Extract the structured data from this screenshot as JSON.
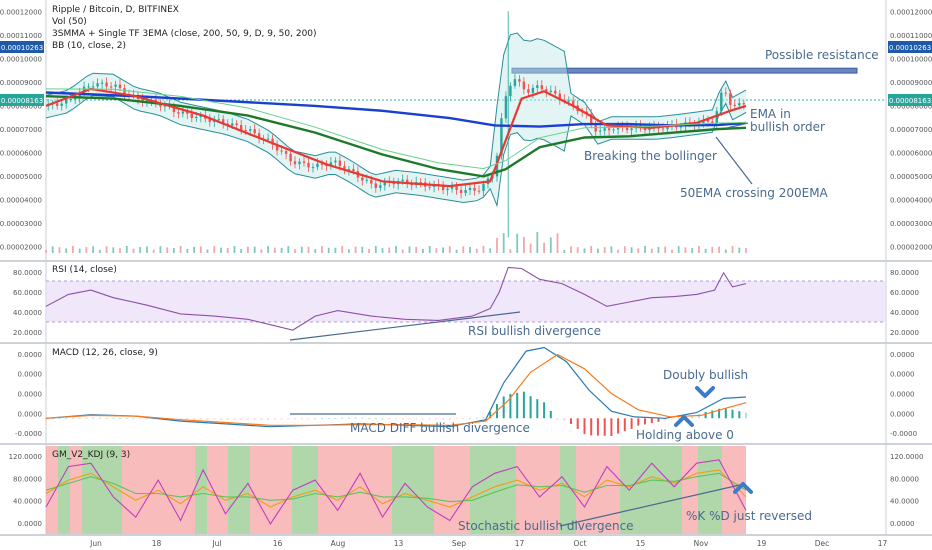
{
  "chart_data": [
    {
      "type": "candlestick",
      "panel": "price",
      "title": "Ripple / Bitcoin, D, BITFINEX",
      "indicators": [
        "Vol (50)",
        "3SMMA + Single TF 3EMA (close, 200, 50, 9, D, 9, 50, 200)",
        "BB (10, close, 2)"
      ],
      "y_ticks": [
        "0.00012000",
        "0.00011000",
        "0.00010000",
        "0.00009000",
        "0.00008000",
        "0.00007000",
        "0.00006000",
        "0.00005000",
        "0.00004000",
        "0.00003000",
        "0.00002000"
      ],
      "ylim": [
        1.85e-05,
        0.0001205
      ],
      "last_price_labels": [
        "0.00010263",
        "0.00008163"
      ],
      "x_labels": [
        "Jun",
        "18",
        "Jul",
        "16",
        "Aug",
        "13",
        "Sep",
        "17",
        "Oct",
        "15",
        "Nov",
        "19",
        "Dec",
        "17"
      ],
      "close_points": [
        [
          0,
          7.88e-05
        ],
        [
          10,
          8.1e-05
        ],
        [
          20,
          8.8e-05
        ],
        [
          30,
          8.75e-05
        ],
        [
          40,
          8.2e-05
        ],
        [
          50,
          8e-05
        ],
        [
          60,
          7.6e-05
        ],
        [
          70,
          7.4e-05
        ],
        [
          80,
          7.2e-05
        ],
        [
          90,
          6.9e-05
        ],
        [
          100,
          6.4e-05
        ],
        [
          110,
          5.6e-05
        ],
        [
          120,
          5.4e-05
        ],
        [
          128,
          5.6e-05
        ],
        [
          136,
          5.2e-05
        ],
        [
          146,
          4.6e-05
        ],
        [
          156,
          4.8e-05
        ],
        [
          166,
          4.7e-05
        ],
        [
          176,
          4.55e-05
        ],
        [
          186,
          4.4e-05
        ],
        [
          194,
          4.5e-05
        ],
        [
          200,
          5.2e-05
        ],
        [
          204,
          8e-05
        ],
        [
          208,
          9.1e-05
        ],
        [
          214,
          8.5e-05
        ],
        [
          220,
          8.7e-05
        ],
        [
          230,
          8.2e-05
        ],
        [
          240,
          7.6e-05
        ],
        [
          246,
          6.8e-05
        ],
        [
          252,
          7e-05
        ],
        [
          262,
          7e-05
        ],
        [
          272,
          7e-05
        ],
        [
          282,
          7.1e-05
        ],
        [
          290,
          7.2e-05
        ],
        [
          298,
          7.3e-05
        ],
        [
          302,
          8.7e-05
        ],
        [
          306,
          7.8e-05
        ],
        [
          312,
          8.1e-05
        ]
      ],
      "series": [
        {
          "name": "EMA 200",
          "color": "#1b3fcf",
          "points": [
            [
              0,
              8.45e-05
            ],
            [
              40,
              8.3e-05
            ],
            [
              80,
              8.1e-05
            ],
            [
              120,
              7.9e-05
            ],
            [
              150,
              7.7e-05
            ],
            [
              180,
              7.4e-05
            ],
            [
              200,
              7.1e-05
            ],
            [
              220,
              7.05e-05
            ],
            [
              240,
              7.15e-05
            ],
            [
              260,
              7.15e-05
            ],
            [
              280,
              7.1e-05
            ],
            [
              300,
              7.12e-05
            ],
            [
              312,
              7.2e-05
            ]
          ]
        },
        {
          "name": "EMA 50",
          "color": "#1d7a2a",
          "points": [
            [
              0,
              8.3e-05
            ],
            [
              30,
              8.2e-05
            ],
            [
              60,
              7.9e-05
            ],
            [
              90,
              7.5e-05
            ],
            [
              120,
              6.8e-05
            ],
            [
              150,
              5.9e-05
            ],
            [
              175,
              5.3e-05
            ],
            [
              195,
              5e-05
            ],
            [
              205,
              5.3e-05
            ],
            [
              220,
              6.2e-05
            ],
            [
              240,
              6.6e-05
            ],
            [
              260,
              6.65e-05
            ],
            [
              280,
              6.8e-05
            ],
            [
              300,
              6.95e-05
            ],
            [
              312,
              7e-05
            ]
          ]
        },
        {
          "name": "EMA 9",
          "color": "#e53935",
          "points": [
            [
              0,
              7.9e-05
            ],
            [
              20,
              8.6e-05
            ],
            [
              40,
              8.3e-05
            ],
            [
              70,
              7.5e-05
            ],
            [
              100,
              6.4e-05
            ],
            [
              125,
              5.5e-05
            ],
            [
              150,
              4.8e-05
            ],
            [
              180,
              4.6e-05
            ],
            [
              198,
              4.8e-05
            ],
            [
              205,
              6.5e-05
            ],
            [
              212,
              8.2e-05
            ],
            [
              222,
              8.5e-05
            ],
            [
              235,
              7.9e-05
            ],
            [
              250,
              7.1e-05
            ],
            [
              270,
              7e-05
            ],
            [
              290,
              7.2e-05
            ],
            [
              305,
              7.7e-05
            ],
            [
              312,
              7.9e-05
            ]
          ]
        }
      ],
      "resistance_zone": [
        9.25e-05,
        9.45e-05
      ],
      "annotations": [
        "Possible resistance",
        "EMA in",
        "bullish order",
        "Breaking the bollinger",
        "50EMA crossing 200EMA"
      ]
    },
    {
      "type": "line",
      "panel": "rsi",
      "title": "RSI (14, close)",
      "y_ticks": [
        "80.0000",
        "60.0000",
        "40.0000",
        "20.0000"
      ],
      "ylim": [
        14,
        88
      ],
      "bands": [
        30,
        70
      ],
      "points": [
        [
          0,
          47
        ],
        [
          10,
          58
        ],
        [
          20,
          62
        ],
        [
          30,
          55
        ],
        [
          45,
          48
        ],
        [
          60,
          40
        ],
        [
          75,
          38
        ],
        [
          90,
          35
        ],
        [
          100,
          30
        ],
        [
          110,
          25
        ],
        [
          120,
          38
        ],
        [
          130,
          43
        ],
        [
          145,
          38
        ],
        [
          160,
          35
        ],
        [
          175,
          34
        ],
        [
          190,
          38
        ],
        [
          198,
          45
        ],
        [
          202,
          60
        ],
        [
          206,
          83
        ],
        [
          212,
          82
        ],
        [
          220,
          72
        ],
        [
          230,
          68
        ],
        [
          240,
          58
        ],
        [
          250,
          47
        ],
        [
          260,
          51
        ],
        [
          270,
          55
        ],
        [
          280,
          56
        ],
        [
          290,
          58
        ],
        [
          298,
          62
        ],
        [
          302,
          78
        ],
        [
          306,
          65
        ],
        [
          312,
          68
        ]
      ],
      "annotations": [
        "RSI bullish divergence"
      ]
    },
    {
      "type": "line",
      "panel": "macd",
      "title": "MACD (12, 26, close, 9)",
      "y_ticks": [
        "0.0000",
        "0.0000",
        "0.0000",
        "0.0000",
        "-0.0000"
      ],
      "ylim": [
        -3.5e-06,
        1.05e-05
      ],
      "series": [
        {
          "name": "MACD",
          "color": "#2a7ab0",
          "points": [
            [
              0,
              0.0
            ],
            [
              20,
              5e-07
            ],
            [
              40,
              3e-07
            ],
            [
              60,
              -4e-07
            ],
            [
              80,
              -8e-07
            ],
            [
              100,
              -1.2e-06
            ],
            [
              120,
              -1e-06
            ],
            [
              140,
              -8e-07
            ],
            [
              160,
              -1e-06
            ],
            [
              180,
              -1.2e-06
            ],
            [
              196,
              -2e-07
            ],
            [
              204,
              5e-06
            ],
            [
              214,
              9.5e-06
            ],
            [
              222,
              1e-05
            ],
            [
              232,
              8e-06
            ],
            [
              242,
              4e-06
            ],
            [
              252,
              1e-06
            ],
            [
              262,
              2e-07
            ],
            [
              276,
              0.0
            ],
            [
              290,
              8e-07
            ],
            [
              302,
              2.8e-06
            ],
            [
              312,
              3e-06
            ]
          ]
        },
        {
          "name": "Signal",
          "color": "#f57c22",
          "points": [
            [
              0,
              0.0
            ],
            [
              20,
              4e-07
            ],
            [
              40,
              3e-07
            ],
            [
              60,
              -2e-07
            ],
            [
              80,
              -6e-07
            ],
            [
              100,
              -1e-06
            ],
            [
              120,
              -1e-06
            ],
            [
              140,
              -9e-07
            ],
            [
              160,
              -9e-07
            ],
            [
              180,
              -1e-06
            ],
            [
              196,
              -4e-07
            ],
            [
              206,
              2.5e-06
            ],
            [
              216,
              6.5e-06
            ],
            [
              228,
              9e-06
            ],
            [
              240,
              7e-06
            ],
            [
              252,
              3.5e-06
            ],
            [
              264,
              1.2e-06
            ],
            [
              278,
              2e-07
            ],
            [
              292,
              4e-07
            ],
            [
              304,
              1.5e-06
            ],
            [
              312,
              2.2e-06
            ]
          ]
        }
      ],
      "annotations": [
        "MACD DIFF bullish divergence",
        "Doubly bullish",
        "Holding above 0"
      ]
    },
    {
      "type": "line",
      "panel": "kdj",
      "title": "GM_V2_KDJ (9, 3)",
      "y_ticks": [
        "120.0000",
        "80.0000",
        "40.0000",
        "0.0000"
      ],
      "ylim": [
        -10,
        122
      ],
      "series": [
        {
          "name": "K",
          "color": "#f39c12",
          "points": [
            [
              0,
              50
            ],
            [
              10,
              70
            ],
            [
              20,
              80
            ],
            [
              30,
              60
            ],
            [
              40,
              40
            ],
            [
              50,
              55
            ],
            [
              60,
              35
            ],
            [
              70,
              60
            ],
            [
              80,
              40
            ],
            [
              90,
              50
            ],
            [
              100,
              30
            ],
            [
              110,
              45
            ],
            [
              120,
              55
            ],
            [
              130,
              40
            ],
            [
              140,
              60
            ],
            [
              150,
              35
            ],
            [
              160,
              50
            ],
            [
              170,
              40
            ],
            [
              180,
              30
            ],
            [
              190,
              45
            ],
            [
              200,
              60
            ],
            [
              210,
              70
            ],
            [
              220,
              55
            ],
            [
              230,
              65
            ],
            [
              240,
              45
            ],
            [
              250,
              70
            ],
            [
              260,
              60
            ],
            [
              270,
              75
            ],
            [
              280,
              65
            ],
            [
              290,
              80
            ],
            [
              300,
              85
            ],
            [
              312,
              45
            ]
          ]
        },
        {
          "name": "D",
          "color": "#5cc45c",
          "points": [
            [
              0,
              55
            ],
            [
              10,
              65
            ],
            [
              20,
              75
            ],
            [
              30,
              65
            ],
            [
              40,
              50
            ],
            [
              50,
              50
            ],
            [
              60,
              45
            ],
            [
              70,
              50
            ],
            [
              80,
              45
            ],
            [
              90,
              45
            ],
            [
              100,
              40
            ],
            [
              110,
              42
            ],
            [
              120,
              50
            ],
            [
              130,
              45
            ],
            [
              140,
              52
            ],
            [
              150,
              45
            ],
            [
              160,
              45
            ],
            [
              170,
              43
            ],
            [
              180,
              38
            ],
            [
              190,
              40
            ],
            [
              200,
              52
            ],
            [
              210,
              63
            ],
            [
              220,
              60
            ],
            [
              230,
              62
            ],
            [
              240,
              52
            ],
            [
              250,
              62
            ],
            [
              260,
              62
            ],
            [
              270,
              70
            ],
            [
              280,
              68
            ],
            [
              290,
              75
            ],
            [
              300,
              80
            ],
            [
              312,
              55
            ]
          ]
        },
        {
          "name": "J",
          "color": "#c03fc0",
          "points": [
            [
              0,
              30
            ],
            [
              10,
              90
            ],
            [
              20,
              95
            ],
            [
              30,
              45
            ],
            [
              40,
              15
            ],
            [
              50,
              70
            ],
            [
              60,
              10
            ],
            [
              70,
              85
            ],
            [
              80,
              20
            ],
            [
              90,
              65
            ],
            [
              100,
              5
            ],
            [
              110,
              55
            ],
            [
              120,
              70
            ],
            [
              130,
              25
            ],
            [
              140,
              80
            ],
            [
              150,
              15
            ],
            [
              160,
              65
            ],
            [
              170,
              30
            ],
            [
              180,
              10
            ],
            [
              190,
              60
            ],
            [
              200,
              80
            ],
            [
              210,
              90
            ],
            [
              220,
              45
            ],
            [
              230,
              75
            ],
            [
              240,
              30
            ],
            [
              250,
              90
            ],
            [
              260,
              55
            ],
            [
              270,
              95
            ],
            [
              280,
              60
            ],
            [
              290,
              95
            ],
            [
              300,
              100
            ],
            [
              312,
              25
            ]
          ]
        }
      ],
      "annotations": [
        "Stochastic bullish divergence",
        "%K %D just reversed"
      ]
    }
  ]
}
